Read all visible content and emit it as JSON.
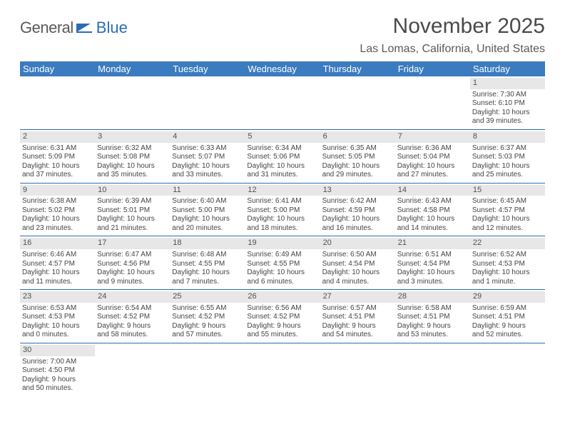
{
  "logo": {
    "part1": "General",
    "part2": "Blue"
  },
  "title": "November 2025",
  "location": "Las Lomas, California, United States",
  "colors": {
    "header_bg": "#3b7bbf",
    "header_text": "#ffffff",
    "cell_border": "#2a6db5",
    "daynum_bg": "#e7e7e7",
    "text": "#444444",
    "logo_gray": "#5a5a5a",
    "logo_blue": "#2a6db5"
  },
  "typography": {
    "title_fontsize": 30,
    "location_fontsize": 16,
    "header_fontsize": 13,
    "cell_fontsize": 10,
    "daynum_fontsize": 11
  },
  "day_labels": [
    "Sunday",
    "Monday",
    "Tuesday",
    "Wednesday",
    "Thursday",
    "Friday",
    "Saturday"
  ],
  "weeks": [
    [
      null,
      null,
      null,
      null,
      null,
      null,
      {
        "n": "1",
        "sunrise": "Sunrise: 7:30 AM",
        "sunset": "Sunset: 6:10 PM",
        "day1": "Daylight: 10 hours",
        "day2": "and 39 minutes."
      }
    ],
    [
      {
        "n": "2",
        "sunrise": "Sunrise: 6:31 AM",
        "sunset": "Sunset: 5:09 PM",
        "day1": "Daylight: 10 hours",
        "day2": "and 37 minutes."
      },
      {
        "n": "3",
        "sunrise": "Sunrise: 6:32 AM",
        "sunset": "Sunset: 5:08 PM",
        "day1": "Daylight: 10 hours",
        "day2": "and 35 minutes."
      },
      {
        "n": "4",
        "sunrise": "Sunrise: 6:33 AM",
        "sunset": "Sunset: 5:07 PM",
        "day1": "Daylight: 10 hours",
        "day2": "and 33 minutes."
      },
      {
        "n": "5",
        "sunrise": "Sunrise: 6:34 AM",
        "sunset": "Sunset: 5:06 PM",
        "day1": "Daylight: 10 hours",
        "day2": "and 31 minutes."
      },
      {
        "n": "6",
        "sunrise": "Sunrise: 6:35 AM",
        "sunset": "Sunset: 5:05 PM",
        "day1": "Daylight: 10 hours",
        "day2": "and 29 minutes."
      },
      {
        "n": "7",
        "sunrise": "Sunrise: 6:36 AM",
        "sunset": "Sunset: 5:04 PM",
        "day1": "Daylight: 10 hours",
        "day2": "and 27 minutes."
      },
      {
        "n": "8",
        "sunrise": "Sunrise: 6:37 AM",
        "sunset": "Sunset: 5:03 PM",
        "day1": "Daylight: 10 hours",
        "day2": "and 25 minutes."
      }
    ],
    [
      {
        "n": "9",
        "sunrise": "Sunrise: 6:38 AM",
        "sunset": "Sunset: 5:02 PM",
        "day1": "Daylight: 10 hours",
        "day2": "and 23 minutes."
      },
      {
        "n": "10",
        "sunrise": "Sunrise: 6:39 AM",
        "sunset": "Sunset: 5:01 PM",
        "day1": "Daylight: 10 hours",
        "day2": "and 21 minutes."
      },
      {
        "n": "11",
        "sunrise": "Sunrise: 6:40 AM",
        "sunset": "Sunset: 5:00 PM",
        "day1": "Daylight: 10 hours",
        "day2": "and 20 minutes."
      },
      {
        "n": "12",
        "sunrise": "Sunrise: 6:41 AM",
        "sunset": "Sunset: 5:00 PM",
        "day1": "Daylight: 10 hours",
        "day2": "and 18 minutes."
      },
      {
        "n": "13",
        "sunrise": "Sunrise: 6:42 AM",
        "sunset": "Sunset: 4:59 PM",
        "day1": "Daylight: 10 hours",
        "day2": "and 16 minutes."
      },
      {
        "n": "14",
        "sunrise": "Sunrise: 6:43 AM",
        "sunset": "Sunset: 4:58 PM",
        "day1": "Daylight: 10 hours",
        "day2": "and 14 minutes."
      },
      {
        "n": "15",
        "sunrise": "Sunrise: 6:45 AM",
        "sunset": "Sunset: 4:57 PM",
        "day1": "Daylight: 10 hours",
        "day2": "and 12 minutes."
      }
    ],
    [
      {
        "n": "16",
        "sunrise": "Sunrise: 6:46 AM",
        "sunset": "Sunset: 4:57 PM",
        "day1": "Daylight: 10 hours",
        "day2": "and 11 minutes."
      },
      {
        "n": "17",
        "sunrise": "Sunrise: 6:47 AM",
        "sunset": "Sunset: 4:56 PM",
        "day1": "Daylight: 10 hours",
        "day2": "and 9 minutes."
      },
      {
        "n": "18",
        "sunrise": "Sunrise: 6:48 AM",
        "sunset": "Sunset: 4:55 PM",
        "day1": "Daylight: 10 hours",
        "day2": "and 7 minutes."
      },
      {
        "n": "19",
        "sunrise": "Sunrise: 6:49 AM",
        "sunset": "Sunset: 4:55 PM",
        "day1": "Daylight: 10 hours",
        "day2": "and 6 minutes."
      },
      {
        "n": "20",
        "sunrise": "Sunrise: 6:50 AM",
        "sunset": "Sunset: 4:54 PM",
        "day1": "Daylight: 10 hours",
        "day2": "and 4 minutes."
      },
      {
        "n": "21",
        "sunrise": "Sunrise: 6:51 AM",
        "sunset": "Sunset: 4:54 PM",
        "day1": "Daylight: 10 hours",
        "day2": "and 3 minutes."
      },
      {
        "n": "22",
        "sunrise": "Sunrise: 6:52 AM",
        "sunset": "Sunset: 4:53 PM",
        "day1": "Daylight: 10 hours",
        "day2": "and 1 minute."
      }
    ],
    [
      {
        "n": "23",
        "sunrise": "Sunrise: 6:53 AM",
        "sunset": "Sunset: 4:53 PM",
        "day1": "Daylight: 10 hours",
        "day2": "and 0 minutes."
      },
      {
        "n": "24",
        "sunrise": "Sunrise: 6:54 AM",
        "sunset": "Sunset: 4:52 PM",
        "day1": "Daylight: 9 hours",
        "day2": "and 58 minutes."
      },
      {
        "n": "25",
        "sunrise": "Sunrise: 6:55 AM",
        "sunset": "Sunset: 4:52 PM",
        "day1": "Daylight: 9 hours",
        "day2": "and 57 minutes."
      },
      {
        "n": "26",
        "sunrise": "Sunrise: 6:56 AM",
        "sunset": "Sunset: 4:52 PM",
        "day1": "Daylight: 9 hours",
        "day2": "and 55 minutes."
      },
      {
        "n": "27",
        "sunrise": "Sunrise: 6:57 AM",
        "sunset": "Sunset: 4:51 PM",
        "day1": "Daylight: 9 hours",
        "day2": "and 54 minutes."
      },
      {
        "n": "28",
        "sunrise": "Sunrise: 6:58 AM",
        "sunset": "Sunset: 4:51 PM",
        "day1": "Daylight: 9 hours",
        "day2": "and 53 minutes."
      },
      {
        "n": "29",
        "sunrise": "Sunrise: 6:59 AM",
        "sunset": "Sunset: 4:51 PM",
        "day1": "Daylight: 9 hours",
        "day2": "and 52 minutes."
      }
    ],
    [
      {
        "n": "30",
        "sunrise": "Sunrise: 7:00 AM",
        "sunset": "Sunset: 4:50 PM",
        "day1": "Daylight: 9 hours",
        "day2": "and 50 minutes."
      },
      null,
      null,
      null,
      null,
      null,
      null
    ]
  ]
}
